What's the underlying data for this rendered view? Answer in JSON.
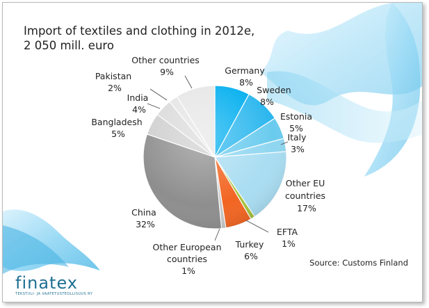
{
  "chart_data": {
    "type": "pie",
    "title": "Import of textiles and clothing in 2012e,",
    "subtitle": "2 050 mill. euro",
    "source": "Source: Customs Finland",
    "slices": [
      {
        "label": "Germany",
        "value": 8,
        "display": "8%",
        "color": "#00aeef"
      },
      {
        "label": "Sweden",
        "value": 8,
        "display": "8%",
        "color": "#2cb7ee"
      },
      {
        "label": "Estonia",
        "value": 5,
        "display": "5%",
        "color": "#6acbee"
      },
      {
        "label": "Italy",
        "value": 3,
        "display": "3%",
        "color": "#8fd6f0"
      },
      {
        "label": "Other EU countries",
        "value": 17,
        "display": "17%",
        "color": "#a9ddf2"
      },
      {
        "label": "EFTA",
        "value": 1,
        "display": "1%",
        "color": "#a6c13a"
      },
      {
        "label": "Turkey",
        "value": 6,
        "display": "6%",
        "color": "#f26522"
      },
      {
        "label": "Other European countries",
        "value": 1,
        "display": "1%",
        "color": "#c8c8c8"
      },
      {
        "label": "China",
        "value": 32,
        "display": "32%",
        "color": "#8e8e8e"
      },
      {
        "label": "Bangladesh",
        "value": 5,
        "display": "5%",
        "color": "#cfcfcf"
      },
      {
        "label": "India",
        "value": 4,
        "display": "4%",
        "color": "#dadada"
      },
      {
        "label": "Pakistan",
        "value": 2,
        "display": "2%",
        "color": "#e4e4e4"
      },
      {
        "label": "Other countries",
        "value": 9,
        "display": "9%",
        "color": "#e6e6e6"
      }
    ]
  },
  "logo": {
    "wordmark": "finatex",
    "tagline": "TEKSTIILI- JA VAATETUSTEOLLISUUS RY"
  }
}
